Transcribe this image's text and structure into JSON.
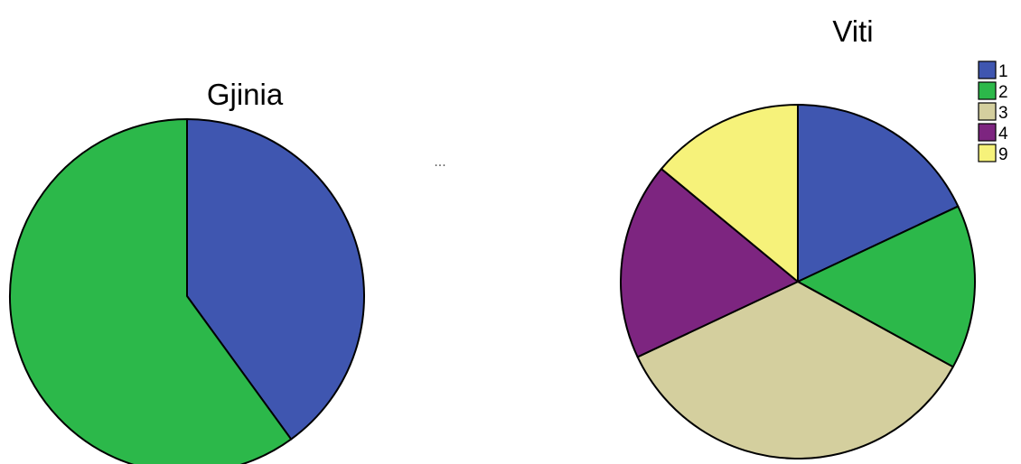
{
  "separator_text": "...",
  "chart_data": [
    {
      "type": "pie",
      "title": "Gjinia",
      "start_angle_deg": 0,
      "direction": "clockwise",
      "slices": [
        {
          "label": "",
          "value": 40,
          "color": "#3f56b0"
        },
        {
          "label": "",
          "value": 60,
          "color": "#2cb84a"
        }
      ],
      "legend": false
    },
    {
      "type": "pie",
      "title": "Viti",
      "start_angle_deg": 0,
      "direction": "clockwise",
      "slices": [
        {
          "label": "1",
          "value": 18,
          "color": "#3f56b0"
        },
        {
          "label": "2",
          "value": 15,
          "color": "#2cb84a"
        },
        {
          "label": "3",
          "value": 35,
          "color": "#d4cf9e"
        },
        {
          "label": "4",
          "value": 18,
          "color": "#7d2580"
        },
        {
          "label": "9",
          "value": 14,
          "color": "#f6f27a"
        }
      ],
      "legend": true,
      "legend_position": "top-right"
    }
  ]
}
